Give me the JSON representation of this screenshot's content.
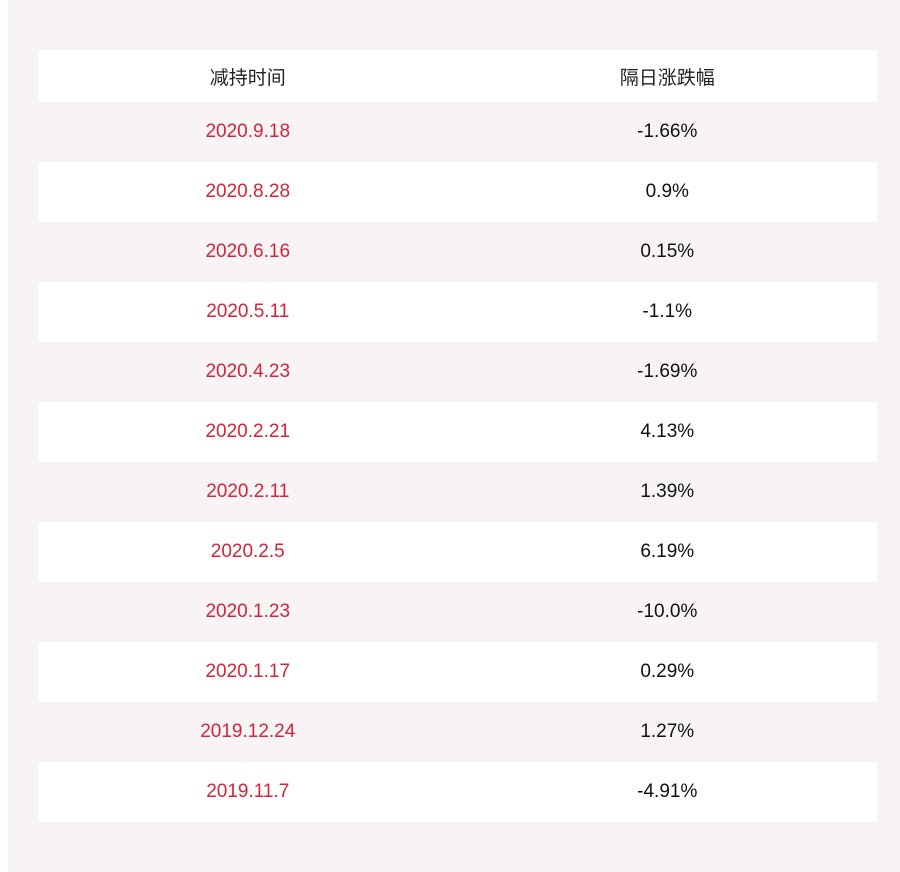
{
  "table": {
    "headers": [
      "减持时间",
      "隔日涨跌幅"
    ],
    "rows": [
      {
        "date": "2020.9.18",
        "change": "-1.66%"
      },
      {
        "date": "2020.8.28",
        "change": "0.9%"
      },
      {
        "date": "2020.6.16",
        "change": "0.15%"
      },
      {
        "date": "2020.5.11",
        "change": "-1.1%"
      },
      {
        "date": "2020.4.23",
        "change": "-1.69%"
      },
      {
        "date": "2020.2.21",
        "change": "4.13%"
      },
      {
        "date": "2020.2.11",
        "change": "1.39%"
      },
      {
        "date": "2020.2.5",
        "change": "6.19%"
      },
      {
        "date": "2020.1.23",
        "change": "-10.0%"
      },
      {
        "date": "2020.1.17",
        "change": "0.29%"
      },
      {
        "date": "2019.12.24",
        "change": "1.27%"
      },
      {
        "date": "2019.11.7",
        "change": "-4.91%"
      }
    ]
  },
  "colors": {
    "date_text": "#d0253a",
    "value_text": "#111111",
    "stripe": "#f8f4f5",
    "row_bg": "#ffffff"
  }
}
